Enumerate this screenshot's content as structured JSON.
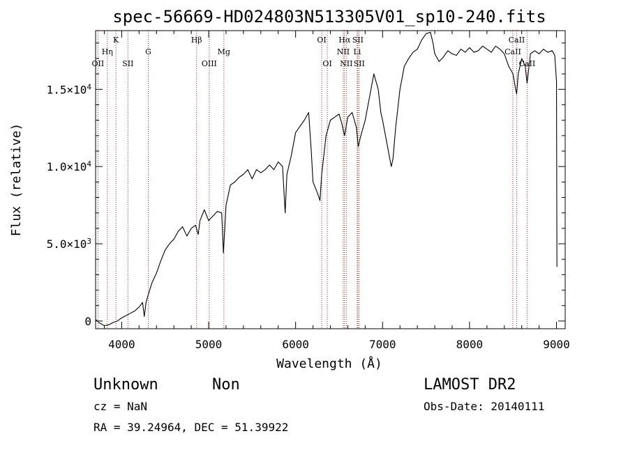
{
  "chart_data": {
    "type": "line",
    "title": "spec-56669-HD024803N513305V01_sp10-240.fits",
    "xlabel": "Wavelength (Å)",
    "ylabel": "Flux (relative)",
    "xlim": [
      3700,
      9100
    ],
    "ylim": [
      -500,
      18800
    ],
    "xticks": [
      4000,
      5000,
      6000,
      7000,
      8000,
      9000
    ],
    "xtick_labels": [
      "4000",
      "5000",
      "6000",
      "7000",
      "8000",
      "9000"
    ],
    "yticks": [
      0,
      5000,
      10000,
      15000
    ],
    "ytick_labels": [
      {
        "mantissa": "0",
        "exponent": ""
      },
      {
        "mantissa": "5.0×10",
        "exponent": "3"
      },
      {
        "mantissa": "1.0×10",
        "exponent": "4"
      },
      {
        "mantissa": "1.5×10",
        "exponent": "4"
      }
    ],
    "grid": false,
    "series": [
      {
        "color": "#000000",
        "points": [
          [
            3700,
            100
          ],
          [
            3750,
            -150
          ],
          [
            3800,
            -300
          ],
          [
            3850,
            -250
          ],
          [
            3900,
            -100
          ],
          [
            3950,
            0
          ],
          [
            4000,
            200
          ],
          [
            4050,
            350
          ],
          [
            4100,
            500
          ],
          [
            4150,
            650
          ],
          [
            4200,
            900
          ],
          [
            4240,
            1200
          ],
          [
            4260,
            300
          ],
          [
            4280,
            1200
          ],
          [
            4300,
            1600
          ],
          [
            4350,
            2500
          ],
          [
            4400,
            3100
          ],
          [
            4450,
            3900
          ],
          [
            4500,
            4600
          ],
          [
            4550,
            5000
          ],
          [
            4600,
            5300
          ],
          [
            4650,
            5800
          ],
          [
            4700,
            6100
          ],
          [
            4750,
            5500
          ],
          [
            4800,
            6000
          ],
          [
            4850,
            6200
          ],
          [
            4880,
            5600
          ],
          [
            4900,
            6500
          ],
          [
            4950,
            7200
          ],
          [
            5000,
            6500
          ],
          [
            5050,
            6800
          ],
          [
            5100,
            7100
          ],
          [
            5150,
            7000
          ],
          [
            5170,
            4400
          ],
          [
            5200,
            7500
          ],
          [
            5250,
            8800
          ],
          [
            5300,
            9000
          ],
          [
            5350,
            9300
          ],
          [
            5400,
            9500
          ],
          [
            5450,
            9800
          ],
          [
            5500,
            9200
          ],
          [
            5550,
            9800
          ],
          [
            5600,
            9600
          ],
          [
            5650,
            9800
          ],
          [
            5700,
            10100
          ],
          [
            5750,
            9800
          ],
          [
            5800,
            10300
          ],
          [
            5850,
            10000
          ],
          [
            5880,
            7000
          ],
          [
            5900,
            9500
          ],
          [
            5950,
            10700
          ],
          [
            6000,
            12200
          ],
          [
            6050,
            12600
          ],
          [
            6100,
            13000
          ],
          [
            6150,
            13500
          ],
          [
            6180,
            11000
          ],
          [
            6200,
            9000
          ],
          [
            6250,
            8300
          ],
          [
            6280,
            7800
          ],
          [
            6300,
            9500
          ],
          [
            6350,
            12000
          ],
          [
            6400,
            13000
          ],
          [
            6450,
            13200
          ],
          [
            6500,
            13400
          ],
          [
            6530,
            12800
          ],
          [
            6563,
            12000
          ],
          [
            6600,
            13200
          ],
          [
            6650,
            13500
          ],
          [
            6700,
            12500
          ],
          [
            6720,
            11300
          ],
          [
            6750,
            12000
          ],
          [
            6800,
            13000
          ],
          [
            6850,
            14500
          ],
          [
            6900,
            16000
          ],
          [
            6950,
            15000
          ],
          [
            6980,
            13500
          ],
          [
            7000,
            13000
          ],
          [
            7050,
            11500
          ],
          [
            7100,
            10000
          ],
          [
            7120,
            10500
          ],
          [
            7150,
            12500
          ],
          [
            7200,
            15000
          ],
          [
            7250,
            16500
          ],
          [
            7300,
            17000
          ],
          [
            7350,
            17400
          ],
          [
            7400,
            17600
          ],
          [
            7450,
            18200
          ],
          [
            7500,
            18600
          ],
          [
            7550,
            18700
          ],
          [
            7580,
            18000
          ],
          [
            7600,
            17300
          ],
          [
            7650,
            16800
          ],
          [
            7700,
            17100
          ],
          [
            7750,
            17500
          ],
          [
            7800,
            17300
          ],
          [
            7850,
            17200
          ],
          [
            7900,
            17600
          ],
          [
            7950,
            17400
          ],
          [
            8000,
            17700
          ],
          [
            8050,
            17400
          ],
          [
            8100,
            17500
          ],
          [
            8150,
            17800
          ],
          [
            8200,
            17600
          ],
          [
            8250,
            17400
          ],
          [
            8300,
            17800
          ],
          [
            8350,
            17600
          ],
          [
            8400,
            17300
          ],
          [
            8450,
            16500
          ],
          [
            8500,
            16000
          ],
          [
            8530,
            15000
          ],
          [
            8542,
            14700
          ],
          [
            8560,
            16000
          ],
          [
            8600,
            17000
          ],
          [
            8640,
            16500
          ],
          [
            8662,
            15400
          ],
          [
            8700,
            17300
          ],
          [
            8750,
            17500
          ],
          [
            8800,
            17300
          ],
          [
            8850,
            17600
          ],
          [
            8900,
            17400
          ],
          [
            8950,
            17500
          ],
          [
            8980,
            17200
          ],
          [
            9000,
            15500
          ],
          [
            9005,
            3500
          ]
        ]
      }
    ],
    "annotations": [
      {
        "label": "OII",
        "x": 3727,
        "row": 3
      },
      {
        "label": "Hη",
        "x": 3835,
        "row": 2
      },
      {
        "label": "K",
        "x": 3934,
        "row": 1
      },
      {
        "label": "SII",
        "x": 4072,
        "row": 3
      },
      {
        "label": "G",
        "x": 4306,
        "row": 2
      },
      {
        "label": "Hβ",
        "x": 4861,
        "row": 1
      },
      {
        "label": "OIII",
        "x": 5007,
        "row": 3
      },
      {
        "label": "Mg",
        "x": 5175,
        "row": 2
      },
      {
        "label": "OI",
        "x": 6300,
        "row": 1
      },
      {
        "label": "OI",
        "x": 6364,
        "row": 3
      },
      {
        "label": "Hα",
        "x": 6563,
        "row": 1
      },
      {
        "label": "NII",
        "x": 6548,
        "row": 2
      },
      {
        "label": "NII",
        "x": 6583,
        "row": 3
      },
      {
        "label": "SII",
        "x": 6716,
        "row": 1
      },
      {
        "label": "Li",
        "x": 6708,
        "row": 2
      },
      {
        "label": "SII",
        "x": 6731,
        "row": 3
      },
      {
        "label": "CaII",
        "x": 8542,
        "row": 1
      },
      {
        "label": "CaII",
        "x": 8498,
        "row": 2
      },
      {
        "label": "CaII",
        "x": 8662,
        "row": 3
      }
    ],
    "line_marker_color": "#b22222"
  },
  "info": {
    "object_class": "Unknown",
    "subclass": "Non",
    "cz": "cz = NaN",
    "coords": "RA =  39.24964, DEC =  51.39922",
    "survey": "LAMOST DR2",
    "obs_date": "Obs-Date: 20140111"
  }
}
